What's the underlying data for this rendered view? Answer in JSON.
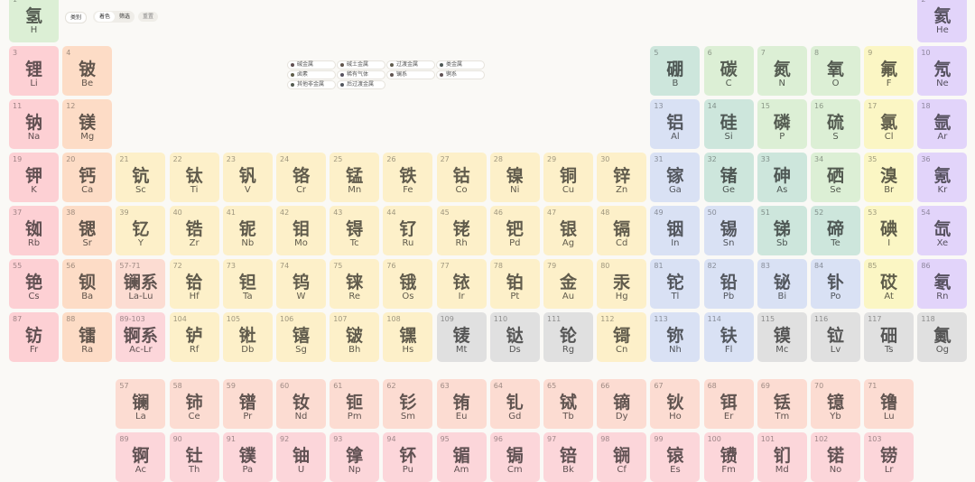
{
  "toolbar": {
    "category": "类别",
    "modes": [
      "着色",
      "筛选"
    ],
    "reset": "重置"
  },
  "legend": [
    {
      "label": "碱金属",
      "color": "#fdd0d4"
    },
    {
      "label": "碱土金属",
      "color": "#fddcc6"
    },
    {
      "label": "过渡金属",
      "color": "#fdf0c9"
    },
    {
      "label": "类金属",
      "color": "#cde6dc"
    },
    {
      "label": "卤素",
      "color": "#fbf6c4"
    },
    {
      "label": "稀有气体",
      "color": "#e2d4fa"
    },
    {
      "label": "镧系",
      "color": "#fcdcd2"
    },
    {
      "label": "锕系",
      "color": "#fcd6da"
    },
    {
      "label": "其他非金属",
      "color": "#dcefd5"
    },
    {
      "label": "后过渡金属",
      "color": "#d9e1f4"
    }
  ],
  "placeholders": [
    {
      "range": "57-71",
      "name": "镧系",
      "symbols": "La-Lu",
      "color": "#fcdcd2"
    },
    {
      "range": "89-103",
      "name": "锕系",
      "symbols": "Ac-Lr",
      "color": "#fcd6da"
    }
  ],
  "elements": [
    {
      "number": 1,
      "name": "氢",
      "symbol": "H",
      "color": "#dcefd5"
    },
    {
      "number": 2,
      "name": "氦",
      "symbol": "He",
      "color": "#e2d4fa"
    },
    {
      "number": 3,
      "name": "锂",
      "symbol": "Li",
      "color": "#fdd0d4"
    },
    {
      "number": 4,
      "name": "铍",
      "symbol": "Be",
      "color": "#fddcc6"
    },
    {
      "number": 5,
      "name": "硼",
      "symbol": "B",
      "color": "#cde6dc"
    },
    {
      "number": 6,
      "name": "碳",
      "symbol": "C",
      "color": "#dcefd5"
    },
    {
      "number": 7,
      "name": "氮",
      "symbol": "N",
      "color": "#dcefd5"
    },
    {
      "number": 8,
      "name": "氧",
      "symbol": "O",
      "color": "#dcefd5"
    },
    {
      "number": 9,
      "name": "氟",
      "symbol": "F",
      "color": "#fbf6c4"
    },
    {
      "number": 10,
      "name": "氖",
      "symbol": "Ne",
      "color": "#e2d4fa"
    },
    {
      "number": 11,
      "name": "钠",
      "symbol": "Na",
      "color": "#fdd0d4"
    },
    {
      "number": 12,
      "name": "镁",
      "symbol": "Mg",
      "color": "#fddcc6"
    },
    {
      "number": 13,
      "name": "铝",
      "symbol": "Al",
      "color": "#d9e1f4"
    },
    {
      "number": 14,
      "name": "硅",
      "symbol": "Si",
      "color": "#cde6dc"
    },
    {
      "number": 15,
      "name": "磷",
      "symbol": "P",
      "color": "#dcefd5"
    },
    {
      "number": 16,
      "name": "硫",
      "symbol": "S",
      "color": "#dcefd5"
    },
    {
      "number": 17,
      "name": "氯",
      "symbol": "Cl",
      "color": "#fbf6c4"
    },
    {
      "number": 18,
      "name": "氩",
      "symbol": "Ar",
      "color": "#e2d4fa"
    },
    {
      "number": 19,
      "name": "钾",
      "symbol": "K",
      "color": "#fdd0d4"
    },
    {
      "number": 20,
      "name": "钙",
      "symbol": "Ca",
      "color": "#fddcc6"
    },
    {
      "number": 21,
      "name": "钪",
      "symbol": "Sc",
      "color": "#fdf0c9"
    },
    {
      "number": 22,
      "name": "钛",
      "symbol": "Ti",
      "color": "#fdf0c9"
    },
    {
      "number": 23,
      "name": "钒",
      "symbol": "V",
      "color": "#fdf0c9"
    },
    {
      "number": 24,
      "name": "铬",
      "symbol": "Cr",
      "color": "#fdf0c9"
    },
    {
      "number": 25,
      "name": "锰",
      "symbol": "Mn",
      "color": "#fdf0c9"
    },
    {
      "number": 26,
      "name": "铁",
      "symbol": "Fe",
      "color": "#fdf0c9"
    },
    {
      "number": 27,
      "name": "钴",
      "symbol": "Co",
      "color": "#fdf0c9"
    },
    {
      "number": 28,
      "name": "镍",
      "symbol": "Ni",
      "color": "#fdf0c9"
    },
    {
      "number": 29,
      "name": "铜",
      "symbol": "Cu",
      "color": "#fdf0c9"
    },
    {
      "number": 30,
      "name": "锌",
      "symbol": "Zn",
      "color": "#fdf0c9"
    },
    {
      "number": 31,
      "name": "镓",
      "symbol": "Ga",
      "color": "#d9e1f4"
    },
    {
      "number": 32,
      "name": "锗",
      "symbol": "Ge",
      "color": "#cde6dc"
    },
    {
      "number": 33,
      "name": "砷",
      "symbol": "As",
      "color": "#cde6dc"
    },
    {
      "number": 34,
      "name": "硒",
      "symbol": "Se",
      "color": "#dcefd5"
    },
    {
      "number": 35,
      "name": "溴",
      "symbol": "Br",
      "color": "#fbf6c4"
    },
    {
      "number": 36,
      "name": "氪",
      "symbol": "Kr",
      "color": "#e2d4fa"
    },
    {
      "number": 37,
      "name": "铷",
      "symbol": "Rb",
      "color": "#fdd0d4"
    },
    {
      "number": 38,
      "name": "锶",
      "symbol": "Sr",
      "color": "#fddcc6"
    },
    {
      "number": 39,
      "name": "钇",
      "symbol": "Y",
      "color": "#fdf0c9"
    },
    {
      "number": 40,
      "name": "锆",
      "symbol": "Zr",
      "color": "#fdf0c9"
    },
    {
      "number": 41,
      "name": "铌",
      "symbol": "Nb",
      "color": "#fdf0c9"
    },
    {
      "number": 42,
      "name": "钼",
      "symbol": "Mo",
      "color": "#fdf0c9"
    },
    {
      "number": 43,
      "name": "锝",
      "symbol": "Tc",
      "color": "#fdf0c9"
    },
    {
      "number": 44,
      "name": "钌",
      "symbol": "Ru",
      "color": "#fdf0c9"
    },
    {
      "number": 45,
      "name": "铑",
      "symbol": "Rh",
      "color": "#fdf0c9"
    },
    {
      "number": 46,
      "name": "钯",
      "symbol": "Pd",
      "color": "#fdf0c9"
    },
    {
      "number": 47,
      "name": "银",
      "symbol": "Ag",
      "color": "#fdf0c9"
    },
    {
      "number": 48,
      "name": "镉",
      "symbol": "Cd",
      "color": "#fdf0c9"
    },
    {
      "number": 49,
      "name": "铟",
      "symbol": "In",
      "color": "#d9e1f4"
    },
    {
      "number": 50,
      "name": "锡",
      "symbol": "Sn",
      "color": "#d9e1f4"
    },
    {
      "number": 51,
      "name": "锑",
      "symbol": "Sb",
      "color": "#cde6dc"
    },
    {
      "number": 52,
      "name": "碲",
      "symbol": "Te",
      "color": "#cde6dc"
    },
    {
      "number": 53,
      "name": "碘",
      "symbol": "I",
      "color": "#fbf6c4"
    },
    {
      "number": 54,
      "name": "氙",
      "symbol": "Xe",
      "color": "#e2d4fa"
    },
    {
      "number": 55,
      "name": "铯",
      "symbol": "Cs",
      "color": "#fdd0d4"
    },
    {
      "number": 56,
      "name": "钡",
      "symbol": "Ba",
      "color": "#fddcc6"
    },
    {
      "number": 57,
      "name": "镧",
      "symbol": "La",
      "color": "#fcdcd2"
    },
    {
      "number": 58,
      "name": "铈",
      "symbol": "Ce",
      "color": "#fcdcd2"
    },
    {
      "number": 59,
      "name": "镨",
      "symbol": "Pr",
      "color": "#fcdcd2"
    },
    {
      "number": 60,
      "name": "钕",
      "symbol": "Nd",
      "color": "#fcdcd2"
    },
    {
      "number": 61,
      "name": "钷",
      "symbol": "Pm",
      "color": "#fcdcd2"
    },
    {
      "number": 62,
      "name": "钐",
      "symbol": "Sm",
      "color": "#fcdcd2"
    },
    {
      "number": 63,
      "name": "铕",
      "symbol": "Eu",
      "color": "#fcdcd2"
    },
    {
      "number": 64,
      "name": "钆",
      "symbol": "Gd",
      "color": "#fcdcd2"
    },
    {
      "number": 65,
      "name": "铽",
      "symbol": "Tb",
      "color": "#fcdcd2"
    },
    {
      "number": 66,
      "name": "镝",
      "symbol": "Dy",
      "color": "#fcdcd2"
    },
    {
      "number": 67,
      "name": "钬",
      "symbol": "Ho",
      "color": "#fcdcd2"
    },
    {
      "number": 68,
      "name": "铒",
      "symbol": "Er",
      "color": "#fcdcd2"
    },
    {
      "number": 69,
      "name": "铥",
      "symbol": "Tm",
      "color": "#fcdcd2"
    },
    {
      "number": 70,
      "name": "镱",
      "symbol": "Yb",
      "color": "#fcdcd2"
    },
    {
      "number": 71,
      "name": "镥",
      "symbol": "Lu",
      "color": "#fcdcd2"
    },
    {
      "number": 72,
      "name": "铪",
      "symbol": "Hf",
      "color": "#fdf0c9"
    },
    {
      "number": 73,
      "name": "钽",
      "symbol": "Ta",
      "color": "#fdf0c9"
    },
    {
      "number": 74,
      "name": "钨",
      "symbol": "W",
      "color": "#fdf0c9"
    },
    {
      "number": 75,
      "name": "铼",
      "symbol": "Re",
      "color": "#fdf0c9"
    },
    {
      "number": 76,
      "name": "锇",
      "symbol": "Os",
      "color": "#fdf0c9"
    },
    {
      "number": 77,
      "name": "铱",
      "symbol": "Ir",
      "color": "#fdf0c9"
    },
    {
      "number": 78,
      "name": "铂",
      "symbol": "Pt",
      "color": "#fdf0c9"
    },
    {
      "number": 79,
      "name": "金",
      "symbol": "Au",
      "color": "#fdf0c9"
    },
    {
      "number": 80,
      "name": "汞",
      "symbol": "Hg",
      "color": "#fdf0c9"
    },
    {
      "number": 81,
      "name": "铊",
      "symbol": "Tl",
      "color": "#d9e1f4"
    },
    {
      "number": 82,
      "name": "铅",
      "symbol": "Pb",
      "color": "#d9e1f4"
    },
    {
      "number": 83,
      "name": "铋",
      "symbol": "Bi",
      "color": "#d9e1f4"
    },
    {
      "number": 84,
      "name": "钋",
      "symbol": "Po",
      "color": "#d9e1f4"
    },
    {
      "number": 85,
      "name": "砹",
      "symbol": "At",
      "color": "#fbf6c4"
    },
    {
      "number": 86,
      "name": "氡",
      "symbol": "Rn",
      "color": "#e2d4fa"
    },
    {
      "number": 87,
      "name": "钫",
      "symbol": "Fr",
      "color": "#fdd0d4"
    },
    {
      "number": 88,
      "name": "镭",
      "symbol": "Ra",
      "color": "#fddcc6"
    },
    {
      "number": 89,
      "name": "锕",
      "symbol": "Ac",
      "color": "#fcd6da"
    },
    {
      "number": 90,
      "name": "钍",
      "symbol": "Th",
      "color": "#fcd6da"
    },
    {
      "number": 91,
      "name": "镤",
      "symbol": "Pa",
      "color": "#fcd6da"
    },
    {
      "number": 92,
      "name": "铀",
      "symbol": "U",
      "color": "#fcd6da"
    },
    {
      "number": 93,
      "name": "镎",
      "symbol": "Np",
      "color": "#fcd6da"
    },
    {
      "number": 94,
      "name": "钚",
      "symbol": "Pu",
      "color": "#fcd6da"
    },
    {
      "number": 95,
      "name": "镅",
      "symbol": "Am",
      "color": "#fcd6da"
    },
    {
      "number": 96,
      "name": "锔",
      "symbol": "Cm",
      "color": "#fcd6da"
    },
    {
      "number": 97,
      "name": "锫",
      "symbol": "Bk",
      "color": "#fcd6da"
    },
    {
      "number": 98,
      "name": "锎",
      "symbol": "Cf",
      "color": "#fcd6da"
    },
    {
      "number": 99,
      "name": "锿",
      "symbol": "Es",
      "color": "#fcd6da"
    },
    {
      "number": 100,
      "name": "镄",
      "symbol": "Fm",
      "color": "#fcd6da"
    },
    {
      "number": 101,
      "name": "钔",
      "symbol": "Md",
      "color": "#fcd6da"
    },
    {
      "number": 102,
      "name": "锘",
      "symbol": "No",
      "color": "#fcd6da"
    },
    {
      "number": 103,
      "name": "铹",
      "symbol": "Lr",
      "color": "#fcd6da"
    },
    {
      "number": 104,
      "name": "𬬻",
      "symbol": "Rf",
      "color": "#fdf0c9"
    },
    {
      "number": 105,
      "name": "𬭊",
      "symbol": "Db",
      "color": "#fdf0c9"
    },
    {
      "number": 106,
      "name": "𬭳",
      "symbol": "Sg",
      "color": "#fdf0c9"
    },
    {
      "number": 107,
      "name": "𬭛",
      "symbol": "Bh",
      "color": "#fdf0c9"
    },
    {
      "number": 108,
      "name": "𬭶",
      "symbol": "Hs",
      "color": "#fdf0c9"
    },
    {
      "number": 109,
      "name": "鿏",
      "symbol": "Mt",
      "color": "#e0e0e0"
    },
    {
      "number": 110,
      "name": "𫟼",
      "symbol": "Ds",
      "color": "#e0e0e0"
    },
    {
      "number": 111,
      "name": "𬬭",
      "symbol": "Rg",
      "color": "#e0e0e0"
    },
    {
      "number": 112,
      "name": "鿔",
      "symbol": "Cn",
      "color": "#fdf0c9"
    },
    {
      "number": 113,
      "name": "鿭",
      "symbol": "Nh",
      "color": "#d9e1f4"
    },
    {
      "number": 114,
      "name": "𫓧",
      "symbol": "Fl",
      "color": "#d9e1f4"
    },
    {
      "number": 115,
      "name": "镆",
      "symbol": "Mc",
      "color": "#e0e0e0"
    },
    {
      "number": 116,
      "name": "𫟷",
      "symbol": "Lv",
      "color": "#e0e0e0"
    },
    {
      "number": 117,
      "name": "鿬",
      "symbol": "Ts",
      "color": "#e0e0e0"
    },
    {
      "number": 118,
      "name": "鿫",
      "symbol": "Og",
      "color": "#e0e0e0"
    }
  ]
}
